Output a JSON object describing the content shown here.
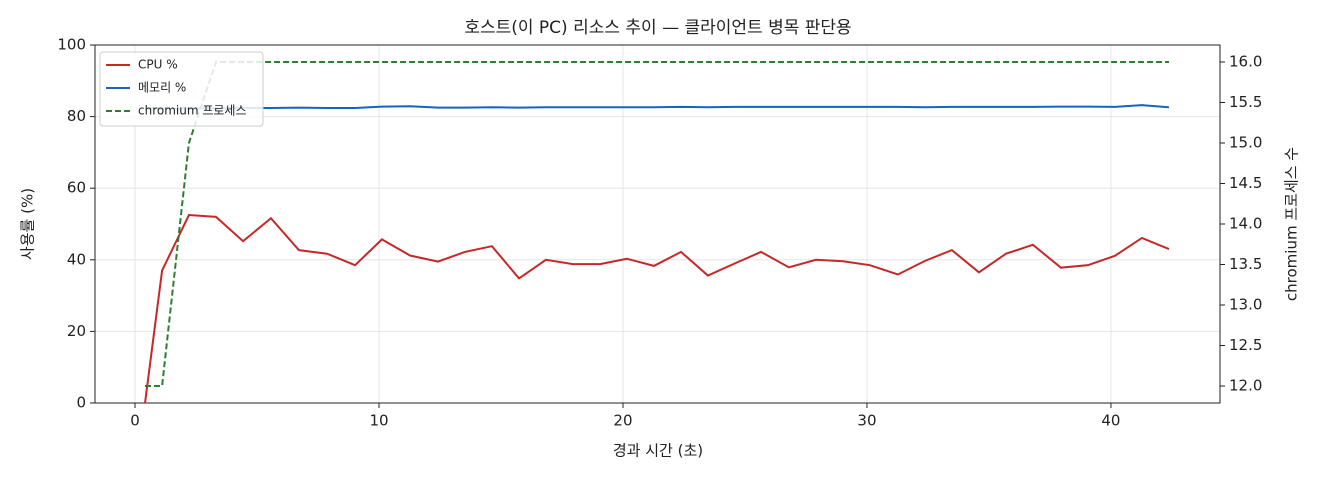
{
  "chart_data": {
    "type": "line",
    "title": "호스트(이 PC) 리소스 추이 — 클라이언트 병목 판단용",
    "xlabel": "경과 시간 (초)",
    "ylabel": "사용률 (%)",
    "y2label": "chromium 프로세스 수",
    "x": [
      0.41,
      1.11,
      2.21,
      3.32,
      4.43,
      5.57,
      6.72,
      7.87,
      9.02,
      10.12,
      11.27,
      12.42,
      13.52,
      14.63,
      15.74,
      16.84,
      17.95,
      19.06,
      20.16,
      21.27,
      22.38,
      23.48,
      24.59,
      25.66,
      26.8,
      27.91,
      29.02,
      30.12,
      31.27,
      32.38,
      33.48,
      34.59,
      35.7,
      36.8,
      37.95,
      39.06,
      40.16,
      41.27,
      42.38
    ],
    "series": [
      {
        "name": "CPU %",
        "color": "#c62828",
        "linestyle": "solid",
        "values": [
          0,
          37,
          52.5,
          52,
          45.2,
          51.6,
          42.7,
          41.7,
          38.5,
          45.7,
          41.2,
          39.5,
          42.2,
          43.8,
          34.8,
          40,
          38.8,
          38.8,
          40.3,
          38.3,
          42.2,
          35.6,
          39,
          42.2,
          37.9,
          40,
          39.6,
          38.5,
          35.9,
          39.7,
          42.7,
          36.5,
          41.7,
          44.2,
          37.8,
          38.5,
          41.1,
          46.1,
          43
        ]
      },
      {
        "name": "메모리 %",
        "color": "#1565c0",
        "linestyle": "solid",
        "values": [
          82.3,
          82.3,
          82.3,
          82.3,
          82.4,
          82.4,
          82.5,
          82.4,
          82.4,
          82.8,
          82.9,
          82.5,
          82.5,
          82.6,
          82.5,
          82.6,
          82.6,
          82.6,
          82.6,
          82.6,
          82.7,
          82.6,
          82.7,
          82.7,
          82.7,
          82.7,
          82.7,
          82.7,
          82.7,
          82.6,
          82.7,
          82.7,
          82.7,
          82.7,
          82.8,
          82.8,
          82.7,
          83.2,
          82.6
        ]
      },
      {
        "name": "chromium 프로세스",
        "color": "#2e7d32",
        "linestyle": "dashed",
        "axis": "y2",
        "values": [
          12,
          12,
          15,
          16,
          16,
          16,
          16,
          16,
          16,
          16,
          16,
          16,
          16,
          16,
          16,
          16,
          16,
          16,
          16,
          16,
          16,
          16,
          16,
          16,
          16,
          16,
          16,
          16,
          16,
          16,
          16,
          16,
          16,
          16,
          16,
          16,
          16,
          16,
          16
        ]
      }
    ],
    "xlim": [
      -1.64,
      44.47
    ],
    "xticks": [
      0,
      10,
      20,
      30,
      40
    ],
    "ylim": [
      0,
      100
    ],
    "yticks": [
      0,
      20,
      40,
      60,
      80,
      100
    ],
    "y2lim": [
      11.79,
      16.21
    ],
    "y2ticks": [
      {
        "value": 12,
        "label": "12.0"
      },
      12.5,
      {
        "value": 13,
        "label": "13.0"
      },
      13.5,
      {
        "value": 14,
        "label": "14.0"
      },
      14.5,
      {
        "value": 15,
        "label": "15.0"
      },
      15.5,
      {
        "value": 16,
        "label": "16.0"
      }
    ],
    "grid": true,
    "legend": "upper-left"
  }
}
